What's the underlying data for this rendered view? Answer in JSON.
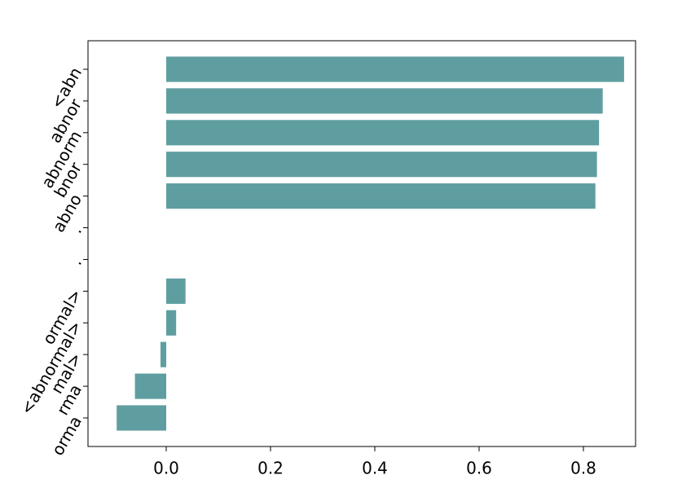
{
  "chart_data": {
    "type": "barh",
    "categories": [
      "<abn",
      "abnor",
      "abnorm",
      "bnor",
      "abno",
      ".",
      ".",
      "ormal>",
      "<abnormal>",
      "mal>",
      "rma",
      "orma"
    ],
    "values": [
      0.878,
      0.837,
      0.83,
      0.826,
      0.823,
      null,
      null,
      0.037,
      0.019,
      -0.011,
      -0.06,
      -0.095
    ],
    "color": "#5f9ea0",
    "xlim": [
      -0.15,
      0.9
    ],
    "xticks": [
      {
        "value": 0,
        "label": "0.0"
      },
      {
        "value": 0.2,
        "label": "0.2"
      },
      {
        "value": 0.4,
        "label": "0.4"
      },
      {
        "value": 0.6,
        "label": "0.6"
      },
      {
        "value": 0.8,
        "label": "0.8"
      }
    ]
  }
}
